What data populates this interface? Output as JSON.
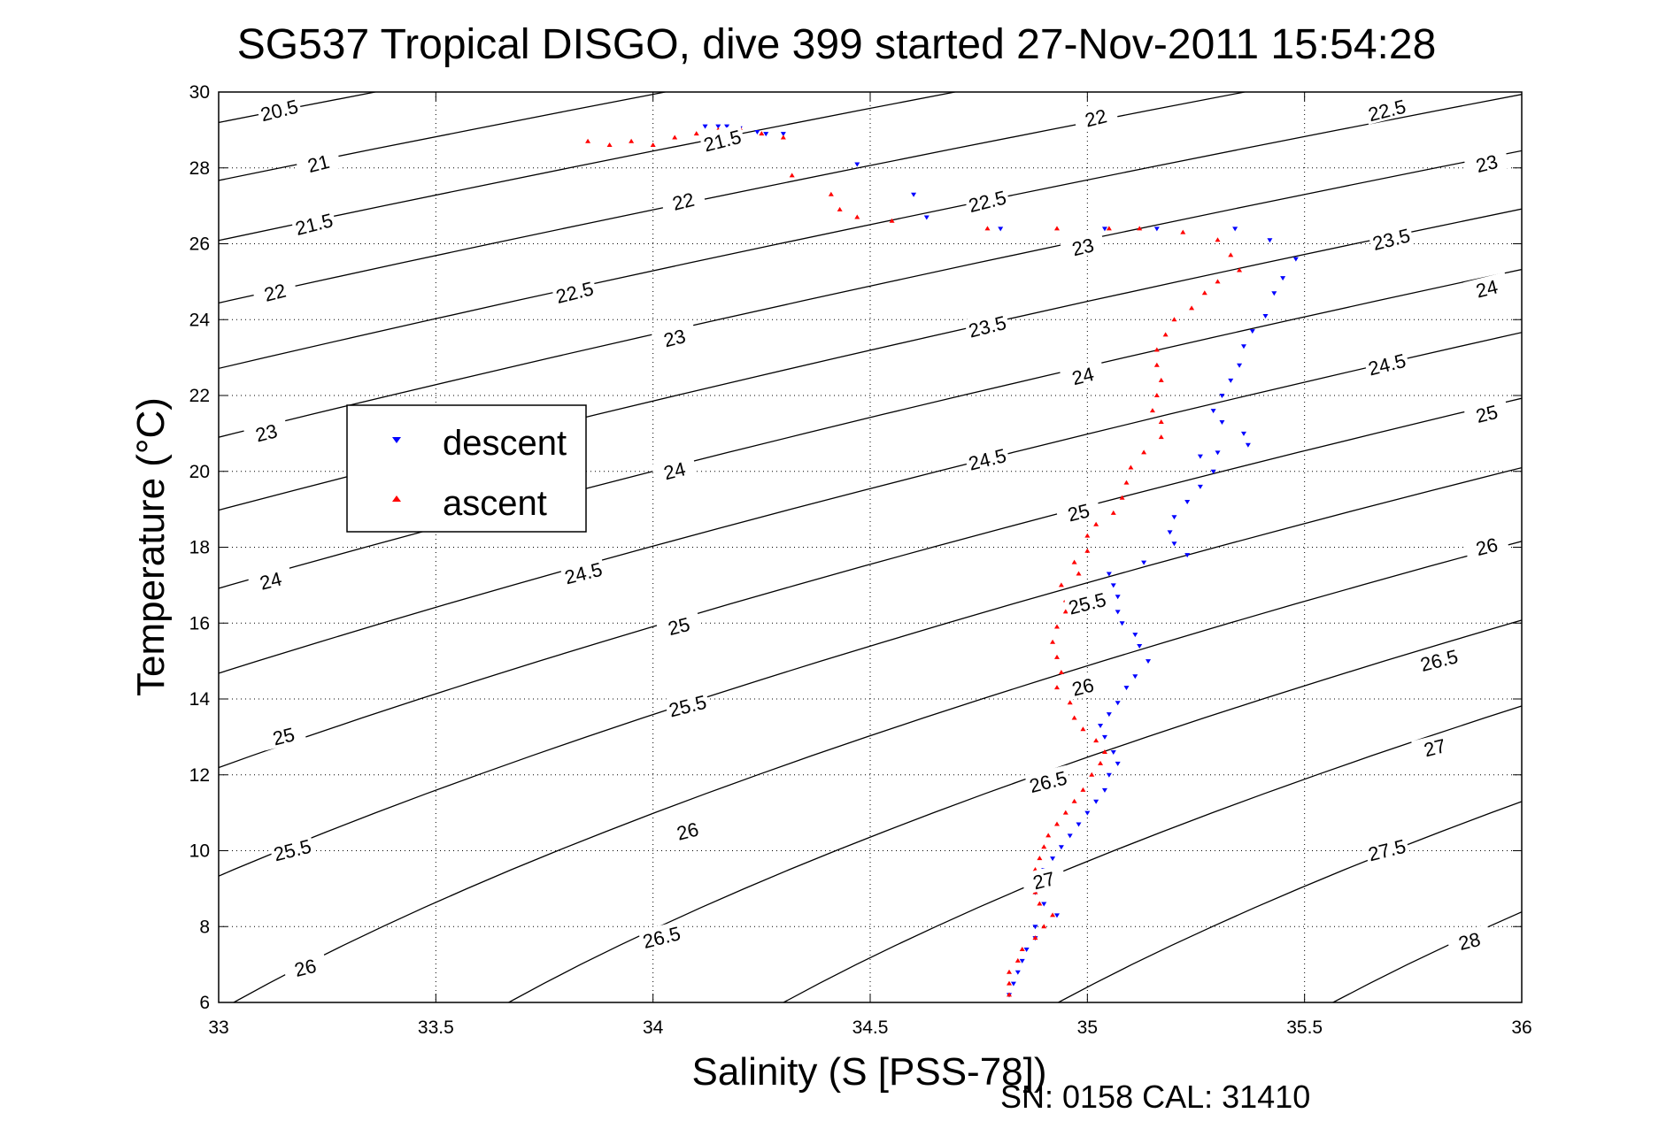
{
  "chart_data": {
    "type": "scatter",
    "title": "SG537 Tropical DISGO, dive 399 started 27-Nov-2011 15:54:28",
    "xlabel": "Salinity (S [PSS-78])",
    "ylabel": "Temperature (°C)",
    "footer": "SN: 0158  CAL: 31410",
    "xlim": [
      33,
      36
    ],
    "ylim": [
      6,
      30
    ],
    "xticks": [
      "33",
      "33.5",
      "34",
      "34.5",
      "35",
      "35.5",
      "36"
    ],
    "yticks": [
      "6",
      "8",
      "10",
      "12",
      "14",
      "16",
      "18",
      "20",
      "22",
      "24",
      "26",
      "28",
      "30"
    ],
    "grid": true,
    "legend_position": "upper-left",
    "density_contours": {
      "color": "#000000",
      "levels": [
        20.5,
        21,
        21.5,
        22,
        22.5,
        23,
        23.5,
        24,
        24.5,
        25,
        25.5,
        26,
        26.5,
        27,
        27.5,
        28
      ],
      "labels": [
        {
          "text": "20.5",
          "s": 33.14,
          "t": 29.5
        },
        {
          "text": "21",
          "s": 33.23,
          "t": 28.1
        },
        {
          "text": "21.5",
          "s": 33.22,
          "t": 26.5
        },
        {
          "text": "22",
          "s": 33.13,
          "t": 24.7
        },
        {
          "text": "23",
          "s": 33.11,
          "t": 21.0
        },
        {
          "text": "24",
          "s": 33.12,
          "t": 17.1
        },
        {
          "text": "25",
          "s": 33.15,
          "t": 13.0
        },
        {
          "text": "25.5",
          "s": 33.17,
          "t": 10.0
        },
        {
          "text": "26",
          "s": 33.2,
          "t": 6.9
        },
        {
          "text": "21.5",
          "s": 34.16,
          "t": 28.7
        },
        {
          "text": "22",
          "s": 34.07,
          "t": 27.1
        },
        {
          "text": "22.5",
          "s": 33.82,
          "t": 24.7
        },
        {
          "text": "23",
          "s": 34.05,
          "t": 23.5
        },
        {
          "text": "24",
          "s": 34.05,
          "t": 20.0
        },
        {
          "text": "24.5",
          "s": 33.84,
          "t": 17.3
        },
        {
          "text": "25",
          "s": 34.06,
          "t": 15.9
        },
        {
          "text": "25.5",
          "s": 34.08,
          "t": 13.8
        },
        {
          "text": "26",
          "s": 34.08,
          "t": 10.5
        },
        {
          "text": "26.5",
          "s": 34.02,
          "t": 7.7
        },
        {
          "text": "22.5",
          "s": 34.77,
          "t": 27.1
        },
        {
          "text": "23.5",
          "s": 34.77,
          "t": 23.8
        },
        {
          "text": "24.5",
          "s": 34.77,
          "t": 20.3
        },
        {
          "text": "26.5",
          "s": 34.91,
          "t": 11.8
        },
        {
          "text": "27",
          "s": 34.9,
          "t": 9.2
        },
        {
          "text": "22",
          "s": 35.02,
          "t": 29.3
        },
        {
          "text": "23",
          "s": 34.99,
          "t": 25.9
        },
        {
          "text": "24",
          "s": 34.99,
          "t": 22.5
        },
        {
          "text": "25",
          "s": 34.98,
          "t": 18.9
        },
        {
          "text": "25.5",
          "s": 35.0,
          "t": 16.5
        },
        {
          "text": "26",
          "s": 34.99,
          "t": 14.3
        },
        {
          "text": "22.5",
          "s": 35.69,
          "t": 29.5
        },
        {
          "text": "23",
          "s": 35.92,
          "t": 28.1
        },
        {
          "text": "23.5",
          "s": 35.7,
          "t": 26.1
        },
        {
          "text": "24",
          "s": 35.92,
          "t": 24.8
        },
        {
          "text": "24.5",
          "s": 35.69,
          "t": 22.8
        },
        {
          "text": "25",
          "s": 35.92,
          "t": 21.5
        },
        {
          "text": "26",
          "s": 35.92,
          "t": 18.0
        },
        {
          "text": "26.5",
          "s": 35.81,
          "t": 15.0
        },
        {
          "text": "27",
          "s": 35.8,
          "t": 12.7
        },
        {
          "text": "27.5",
          "s": 35.69,
          "t": 10.0
        },
        {
          "text": "28",
          "s": 35.88,
          "t": 7.6
        }
      ]
    },
    "series": [
      {
        "name": "descent",
        "color": "#0000ff",
        "marker": "triangle-down",
        "points": [
          [
            34.12,
            29.1
          ],
          [
            34.15,
            29.1
          ],
          [
            34.17,
            29.1
          ],
          [
            34.2,
            29.05
          ],
          [
            34.24,
            28.95
          ],
          [
            34.26,
            28.9
          ],
          [
            34.3,
            28.9
          ],
          [
            34.47,
            28.1
          ],
          [
            34.6,
            27.3
          ],
          [
            34.63,
            26.7
          ],
          [
            34.8,
            26.4
          ],
          [
            35.04,
            26.4
          ],
          [
            35.16,
            26.4
          ],
          [
            35.34,
            26.4
          ],
          [
            35.42,
            26.1
          ],
          [
            35.48,
            25.6
          ],
          [
            35.45,
            25.1
          ],
          [
            35.43,
            24.7
          ],
          [
            35.41,
            24.1
          ],
          [
            35.38,
            23.7
          ],
          [
            35.36,
            23.3
          ],
          [
            35.35,
            22.8
          ],
          [
            35.33,
            22.4
          ],
          [
            35.31,
            22.0
          ],
          [
            35.29,
            21.6
          ],
          [
            35.31,
            21.3
          ],
          [
            35.36,
            21.0
          ],
          [
            35.37,
            20.7
          ],
          [
            35.3,
            20.5
          ],
          [
            35.26,
            20.4
          ],
          [
            35.29,
            20.0
          ],
          [
            35.26,
            19.6
          ],
          [
            35.23,
            19.2
          ],
          [
            35.2,
            18.8
          ],
          [
            35.19,
            18.4
          ],
          [
            35.2,
            18.1
          ],
          [
            35.23,
            17.8
          ],
          [
            35.13,
            17.6
          ],
          [
            35.05,
            17.3
          ],
          [
            35.06,
            17.0
          ],
          [
            35.07,
            16.7
          ],
          [
            35.07,
            16.3
          ],
          [
            35.08,
            16.0
          ],
          [
            35.11,
            15.7
          ],
          [
            35.12,
            15.4
          ],
          [
            35.14,
            15.0
          ],
          [
            35.11,
            14.6
          ],
          [
            35.09,
            14.3
          ],
          [
            35.07,
            13.9
          ],
          [
            35.05,
            13.6
          ],
          [
            35.03,
            13.3
          ],
          [
            35.04,
            13.0
          ],
          [
            35.06,
            12.6
          ],
          [
            35.07,
            12.3
          ],
          [
            35.05,
            12.0
          ],
          [
            35.04,
            11.6
          ],
          [
            35.02,
            11.3
          ],
          [
            35.0,
            11.0
          ],
          [
            34.98,
            10.7
          ],
          [
            34.96,
            10.4
          ],
          [
            34.94,
            10.1
          ],
          [
            34.92,
            9.8
          ],
          [
            34.9,
            9.5
          ],
          [
            34.88,
            9.2
          ],
          [
            34.88,
            8.9
          ],
          [
            34.9,
            8.6
          ],
          [
            34.93,
            8.3
          ],
          [
            34.88,
            8.0
          ],
          [
            34.88,
            7.7
          ],
          [
            34.86,
            7.4
          ],
          [
            34.85,
            7.1
          ],
          [
            34.84,
            6.8
          ],
          [
            34.83,
            6.5
          ],
          [
            34.82,
            6.2
          ]
        ]
      },
      {
        "name": "ascent",
        "color": "#ff0000",
        "marker": "triangle-up",
        "points": [
          [
            33.85,
            28.7
          ],
          [
            33.9,
            28.6
          ],
          [
            33.95,
            28.7
          ],
          [
            34.0,
            28.6
          ],
          [
            34.05,
            28.8
          ],
          [
            34.1,
            28.9
          ],
          [
            34.15,
            29.0
          ],
          [
            34.2,
            29.05
          ],
          [
            34.25,
            28.9
          ],
          [
            34.3,
            28.8
          ],
          [
            34.32,
            27.8
          ],
          [
            34.41,
            27.3
          ],
          [
            34.43,
            26.9
          ],
          [
            34.47,
            26.7
          ],
          [
            34.55,
            26.6
          ],
          [
            34.77,
            26.4
          ],
          [
            34.93,
            26.4
          ],
          [
            35.05,
            26.4
          ],
          [
            35.12,
            26.4
          ],
          [
            35.22,
            26.3
          ],
          [
            35.3,
            26.1
          ],
          [
            35.33,
            25.7
          ],
          [
            35.35,
            25.3
          ],
          [
            35.3,
            25.0
          ],
          [
            35.27,
            24.7
          ],
          [
            35.24,
            24.3
          ],
          [
            35.2,
            24.0
          ],
          [
            35.18,
            23.6
          ],
          [
            35.16,
            23.2
          ],
          [
            35.16,
            22.8
          ],
          [
            35.17,
            22.4
          ],
          [
            35.16,
            22.0
          ],
          [
            35.15,
            21.6
          ],
          [
            35.17,
            21.3
          ],
          [
            35.17,
            20.9
          ],
          [
            35.13,
            20.5
          ],
          [
            35.1,
            20.1
          ],
          [
            35.09,
            19.7
          ],
          [
            35.08,
            19.3
          ],
          [
            35.06,
            18.9
          ],
          [
            35.02,
            18.6
          ],
          [
            35.0,
            18.3
          ],
          [
            35.0,
            17.9
          ],
          [
            34.97,
            17.6
          ],
          [
            34.98,
            17.3
          ],
          [
            34.94,
            17.0
          ],
          [
            34.95,
            16.6
          ],
          [
            34.95,
            16.3
          ],
          [
            34.93,
            15.9
          ],
          [
            34.92,
            15.5
          ],
          [
            34.93,
            15.1
          ],
          [
            34.94,
            14.7
          ],
          [
            34.93,
            14.3
          ],
          [
            34.96,
            13.9
          ],
          [
            34.97,
            13.5
          ],
          [
            34.99,
            13.2
          ],
          [
            35.02,
            12.9
          ],
          [
            35.04,
            12.6
          ],
          [
            35.03,
            12.3
          ],
          [
            35.01,
            12.0
          ],
          [
            34.99,
            11.6
          ],
          [
            34.97,
            11.3
          ],
          [
            34.95,
            11.0
          ],
          [
            34.93,
            10.7
          ],
          [
            34.91,
            10.4
          ],
          [
            34.9,
            10.1
          ],
          [
            34.89,
            9.8
          ],
          [
            34.88,
            9.5
          ],
          [
            34.87,
            9.2
          ],
          [
            34.88,
            8.9
          ],
          [
            34.89,
            8.6
          ],
          [
            34.92,
            8.3
          ],
          [
            34.9,
            8.0
          ],
          [
            34.88,
            7.7
          ],
          [
            34.85,
            7.4
          ],
          [
            34.84,
            7.1
          ],
          [
            34.82,
            6.8
          ],
          [
            34.82,
            6.5
          ],
          [
            34.82,
            6.2
          ]
        ]
      }
    ]
  }
}
